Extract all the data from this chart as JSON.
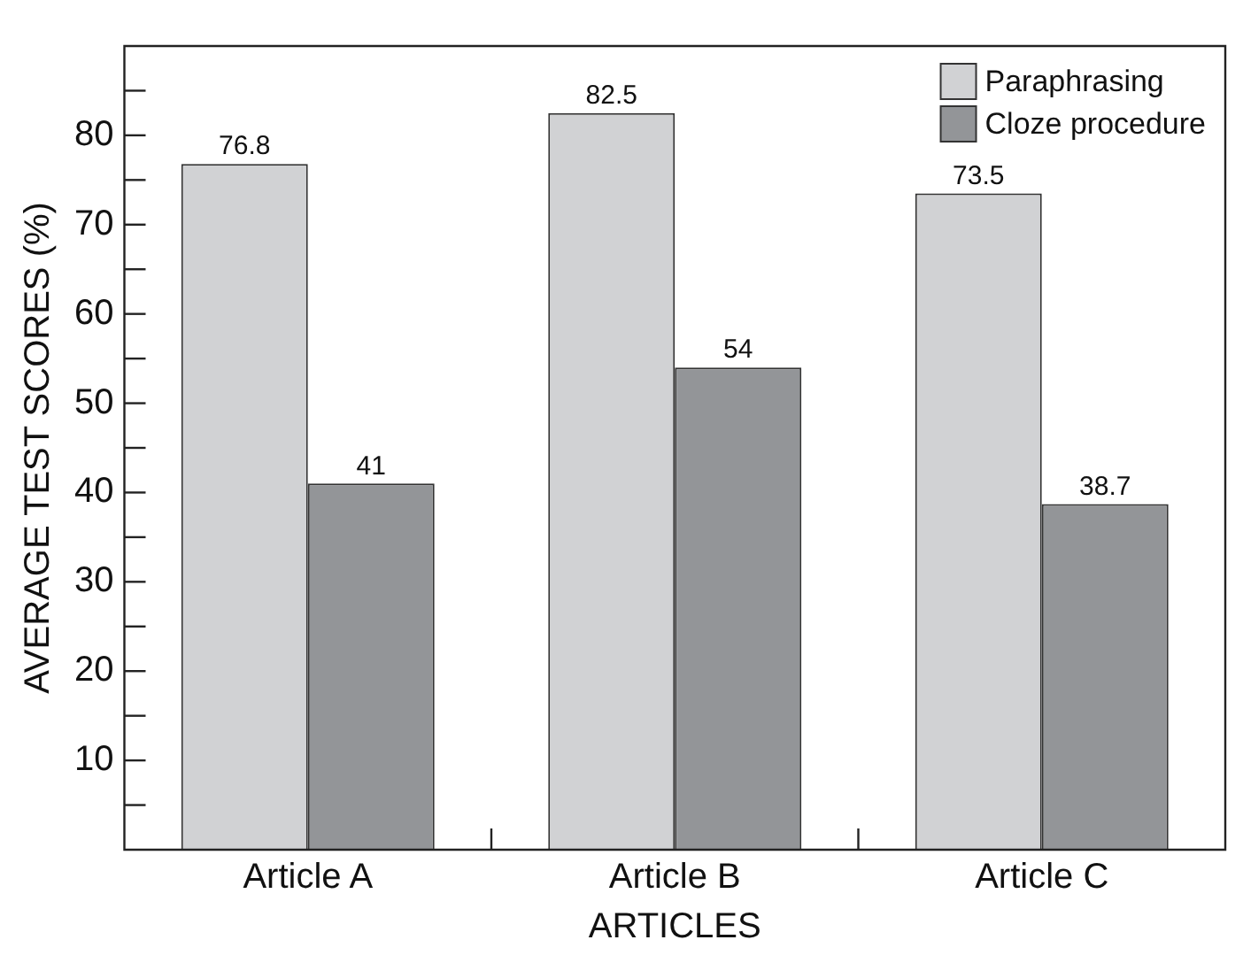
{
  "chart_data": {
    "type": "bar",
    "xlabel": "ARTICLES",
    "ylabel": "AVERAGE TEST SCORES (%)",
    "categories": [
      "Article A",
      "Article B",
      "Article C"
    ],
    "series": [
      {
        "name": "Paraphrasing",
        "color": "#d1d2d4",
        "values": [
          76.8,
          82.5,
          73.5
        ]
      },
      {
        "name": "Cloze procedure",
        "color": "#939598",
        "values": [
          41,
          54,
          38.7
        ]
      }
    ],
    "ylim": [
      0,
      90
    ],
    "yticks": [
      {
        "value": 5,
        "label": null
      },
      10,
      {
        "value": 15,
        "label": null
      },
      20,
      {
        "value": 25,
        "label": null
      },
      30,
      {
        "value": 35,
        "label": null
      },
      40,
      {
        "value": 45,
        "label": null
      },
      50,
      {
        "value": 55,
        "label": null
      },
      60,
      {
        "value": 65,
        "label": null
      },
      70,
      {
        "value": 75,
        "label": null
      },
      80,
      {
        "value": 85,
        "label": null
      }
    ],
    "data_labels": true,
    "grid": false,
    "legend": "top right"
  }
}
